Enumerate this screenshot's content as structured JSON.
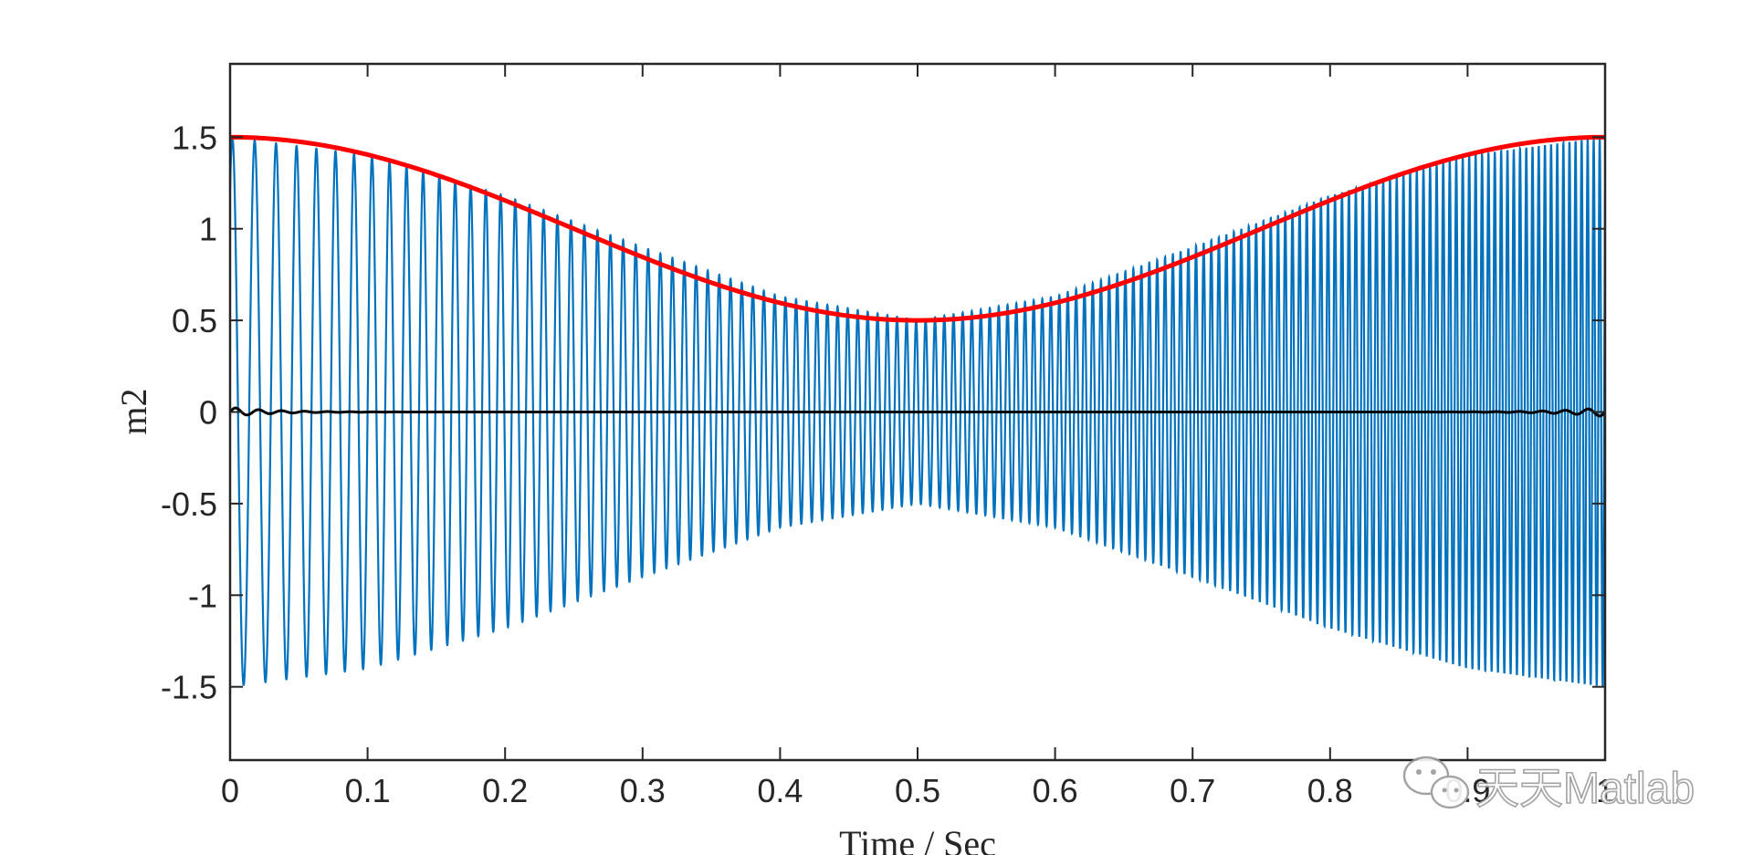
{
  "chart_data": {
    "type": "line",
    "xlabel": "Time / Sec",
    "ylabel": "m2",
    "xlim": [
      0,
      1
    ],
    "ylim": [
      -1.9,
      1.9
    ],
    "xticks": [
      0,
      0.1,
      0.2,
      0.3,
      0.4,
      0.5,
      0.6,
      0.7,
      0.8,
      0.9,
      1
    ],
    "xtick_labels": [
      "0",
      "0.1",
      "0.2",
      "0.3",
      "0.4",
      "0.5",
      "0.6",
      "0.7",
      "0.8",
      "0.9",
      "1"
    ],
    "yticks": [
      -1.5,
      -1,
      -0.5,
      0,
      0.5,
      1,
      1.5
    ],
    "ytick_labels": [
      "-1.5",
      "-1",
      "-0.5",
      "0",
      "0.5",
      "1",
      "1.5"
    ],
    "grid": false,
    "box": true,
    "series": [
      {
        "color": "#0072BD",
        "description": "oscillating signal with slowly varying envelope",
        "envelope_points": {
          "t": [
            0,
            0.1,
            0.2,
            0.3,
            0.4,
            0.5,
            0.6,
            0.7,
            0.8,
            0.9,
            1.0
          ],
          "amplitude": [
            1.5,
            1.4,
            1.18,
            0.9,
            0.63,
            0.5,
            0.63,
            0.9,
            1.18,
            1.4,
            1.5
          ]
        },
        "frequency_start_hz": 60,
        "frequency_end_hz": 230
      },
      {
        "color": "#FF0000",
        "description": "upper envelope",
        "x": [
          0,
          0.1,
          0.2,
          0.3,
          0.4,
          0.5,
          0.6,
          0.7,
          0.8,
          0.9,
          1.0
        ],
        "y": [
          1.5,
          1.4,
          1.18,
          0.9,
          0.63,
          0.5,
          0.63,
          0.9,
          1.18,
          1.4,
          1.5
        ]
      },
      {
        "color": "#000000",
        "description": "near-zero residual",
        "x": [
          0,
          0.05,
          0.1,
          0.5,
          0.9,
          0.95,
          1.0
        ],
        "y": [
          0,
          0,
          0,
          0,
          0,
          0,
          0
        ]
      }
    ]
  },
  "watermark": {
    "text": "天天Matlab",
    "icon": "wechat-icon"
  }
}
